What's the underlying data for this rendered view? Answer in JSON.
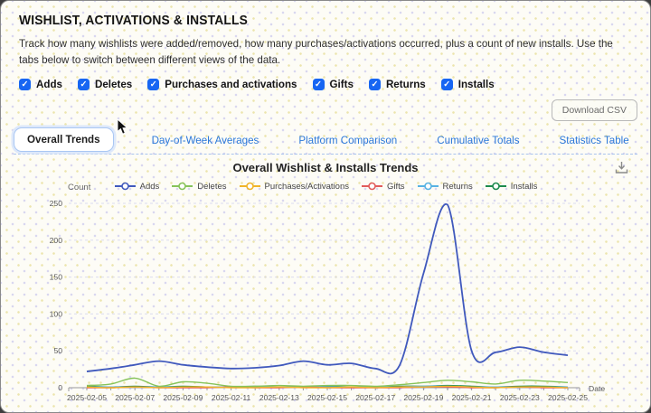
{
  "page": {
    "title": "WISHLIST, ACTIVATIONS & INSTALLS",
    "description": "Track how many wishlists were added/removed, how many purchases/activations occurred, plus a count of new installs. Use the tabs below to switch between different views of the data."
  },
  "filters": {
    "items": [
      {
        "label": "Adds",
        "checked": true
      },
      {
        "label": "Deletes",
        "checked": true
      },
      {
        "label": "Purchases and activations",
        "checked": true
      },
      {
        "label": "Gifts",
        "checked": true
      },
      {
        "label": "Returns",
        "checked": true
      },
      {
        "label": "Installs",
        "checked": true
      }
    ],
    "check_glyph": "✓"
  },
  "toolbar": {
    "download_csv_label": "Download CSV"
  },
  "tabs": [
    {
      "label": "Overall Trends",
      "active": true
    },
    {
      "label": "Day-of-Week Averages",
      "active": false
    },
    {
      "label": "Platform Comparison",
      "active": false
    },
    {
      "label": "Cumulative Totals",
      "active": false
    },
    {
      "label": "Statistics Table",
      "active": false
    }
  ],
  "colors": {
    "checkbox_blue": "#1766f2",
    "tab_link_blue": "#2b78d9",
    "grid_dash": "#dcdcf0",
    "axis_gray": "#999999"
  },
  "chart_data": {
    "type": "line",
    "title": "Overall Wishlist & Installs Trends",
    "xlabel": "Date",
    "ylabel": "Count",
    "ylim": [
      0,
      250
    ],
    "y_ticks": [
      0,
      50,
      100,
      150,
      200,
      250
    ],
    "x_tick_every": 2,
    "grid": "horizontal-dashed",
    "legend_position": "top",
    "x": [
      "2025-02-05",
      "2025-02-06",
      "2025-02-07",
      "2025-02-08",
      "2025-02-09",
      "2025-02-10",
      "2025-02-11",
      "2025-02-12",
      "2025-02-13",
      "2025-02-14",
      "2025-02-15",
      "2025-02-16",
      "2025-02-17",
      "2025-02-18",
      "2025-02-19",
      "2025-02-20",
      "2025-02-21",
      "2025-02-22",
      "2025-02-23",
      "2025-02-24",
      "2025-02-25"
    ],
    "series": [
      {
        "name": "Adds",
        "color": "#4059bd",
        "values": [
          22,
          26,
          31,
          36,
          31,
          28,
          26,
          27,
          30,
          36,
          31,
          33,
          26,
          30,
          155,
          248,
          50,
          48,
          55,
          48,
          44
        ]
      },
      {
        "name": "Deletes",
        "color": "#86c35a",
        "values": [
          3,
          5,
          13,
          2,
          8,
          6,
          2,
          2,
          3,
          2,
          3,
          3,
          2,
          4,
          7,
          10,
          8,
          5,
          10,
          9,
          7
        ]
      },
      {
        "name": "Purchases/Activations",
        "color": "#f0b429",
        "values": [
          1,
          0,
          1,
          0,
          1,
          1,
          0,
          0,
          1,
          0,
          0,
          1,
          0,
          1,
          1,
          2,
          1,
          0,
          1,
          1,
          0
        ]
      },
      {
        "name": "Gifts",
        "color": "#e25c5c",
        "values": [
          0,
          0,
          1,
          0,
          0,
          0,
          1,
          0,
          0,
          1,
          0,
          0,
          0,
          0,
          1,
          1,
          0,
          0,
          1,
          0,
          0
        ]
      },
      {
        "name": "Returns",
        "color": "#57b2e3",
        "values": [
          1,
          1,
          1,
          1,
          1,
          1,
          1,
          1,
          1,
          1,
          1,
          1,
          1,
          1,
          2,
          2,
          1,
          1,
          1,
          1,
          1
        ]
      },
      {
        "name": "Installs",
        "color": "#1d8a4e",
        "values": [
          2,
          1,
          2,
          1,
          2,
          1,
          1,
          2,
          1,
          1,
          2,
          1,
          1,
          2,
          2,
          3,
          2,
          1,
          2,
          2,
          1
        ]
      }
    ]
  }
}
